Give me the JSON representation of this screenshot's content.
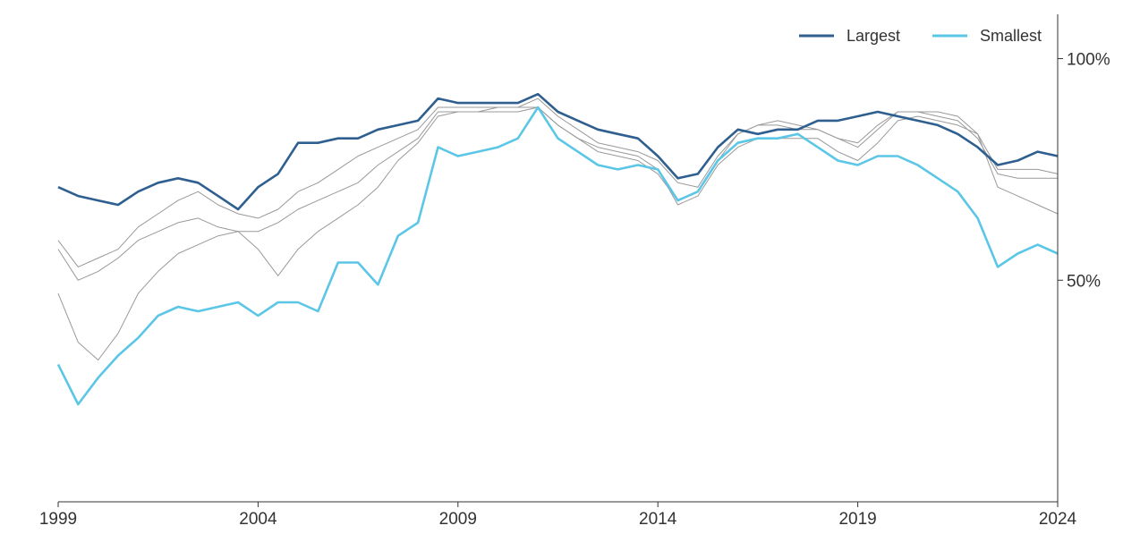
{
  "chart_data": {
    "type": "line",
    "title": "",
    "xlabel": "",
    "ylabel": "",
    "xlim": [
      1999,
      2024
    ],
    "ylim": [
      0,
      110
    ],
    "x_ticks": [
      1999,
      2004,
      2009,
      2014,
      2019,
      2024
    ],
    "x_tick_labels": [
      "1999",
      "2004",
      "2009",
      "2014",
      "2019",
      "2024"
    ],
    "y_ticks": [
      50,
      100
    ],
    "y_tick_labels": [
      "50%",
      "100%"
    ],
    "y_axis_position": "right",
    "grid": false,
    "legend_position": "top-right",
    "legend": [
      {
        "label": "Largest",
        "color": "#2e5f8f"
      },
      {
        "label": "Smallest",
        "color": "#5bc6e6"
      }
    ],
    "series": [
      {
        "name": "Largest",
        "color": "#2e5f8f",
        "highlight": true,
        "x": [
          1999.0,
          1999.5,
          2000.0,
          2000.5,
          2001.0,
          2001.5,
          2002.0,
          2002.5,
          2003.0,
          2003.5,
          2004.0,
          2004.5,
          2005.0,
          2005.5,
          2006.0,
          2006.5,
          2007.0,
          2007.5,
          2008.0,
          2008.5,
          2009.0,
          2009.5,
          2010.0,
          2010.5,
          2011.0,
          2011.5,
          2012.0,
          2012.5,
          2013.0,
          2013.5,
          2014.0,
          2014.5,
          2015.0,
          2015.5,
          2016.0,
          2016.5,
          2017.0,
          2017.5,
          2018.0,
          2018.5,
          2019.0,
          2019.5,
          2020.0,
          2020.5,
          2021.0,
          2021.5,
          2022.0,
          2022.5,
          2023.0,
          2023.5,
          2024.0
        ],
        "y": [
          71,
          69,
          68,
          67,
          70,
          72,
          73,
          72,
          69,
          66,
          71,
          74,
          81,
          81,
          82,
          82,
          84,
          85,
          86,
          91,
          90,
          90,
          90,
          90,
          92,
          88,
          86,
          84,
          83,
          82,
          78,
          73,
          74,
          80,
          84,
          83,
          84,
          84,
          86,
          86,
          87,
          88,
          87,
          86,
          85,
          83,
          80,
          76,
          77,
          79,
          78
        ]
      },
      {
        "name": "Smallest",
        "color": "#5bc6e6",
        "highlight": true,
        "x": [
          1999.0,
          1999.5,
          2000.0,
          2000.5,
          2001.0,
          2001.5,
          2002.0,
          2002.5,
          2003.0,
          2003.5,
          2004.0,
          2004.5,
          2005.0,
          2005.5,
          2006.0,
          2006.5,
          2007.0,
          2007.5,
          2008.0,
          2008.5,
          2009.0,
          2009.5,
          2010.0,
          2010.5,
          2011.0,
          2011.5,
          2012.0,
          2012.5,
          2013.0,
          2013.5,
          2014.0,
          2014.5,
          2015.0,
          2015.5,
          2016.0,
          2016.5,
          2017.0,
          2017.5,
          2018.0,
          2018.5,
          2019.0,
          2019.5,
          2020.0,
          2020.5,
          2021.0,
          2021.5,
          2022.0,
          2022.5,
          2023.0,
          2023.5,
          2024.0
        ],
        "y": [
          31,
          22,
          28,
          33,
          37,
          42,
          44,
          43,
          44,
          45,
          42,
          45,
          45,
          43,
          54,
          54,
          49,
          60,
          63,
          80,
          78,
          79,
          80,
          82,
          89,
          82,
          79,
          76,
          75,
          76,
          75,
          68,
          70,
          77,
          81,
          82,
          82,
          83,
          80,
          77,
          76,
          78,
          78,
          76,
          73,
          70,
          64,
          53,
          56,
          58,
          56
        ]
      },
      {
        "name": "",
        "color": "#999999",
        "highlight": false,
        "x": [
          1999.0,
          1999.5,
          2000.0,
          2000.5,
          2001.0,
          2001.5,
          2002.0,
          2002.5,
          2003.0,
          2003.5,
          2004.0,
          2004.5,
          2005.0,
          2005.5,
          2006.0,
          2006.5,
          2007.0,
          2007.5,
          2008.0,
          2008.5,
          2009.0,
          2009.5,
          2010.0,
          2010.5,
          2011.0,
          2011.5,
          2012.0,
          2012.5,
          2013.0,
          2013.5,
          2014.0,
          2014.5,
          2015.0,
          2015.5,
          2016.0,
          2016.5,
          2017.0,
          2017.5,
          2018.0,
          2018.5,
          2019.0,
          2019.5,
          2020.0,
          2020.5,
          2021.0,
          2021.5,
          2022.0,
          2022.5,
          2023.0,
          2023.5,
          2024.0
        ],
        "y": [
          59,
          53,
          55,
          57,
          62,
          65,
          68,
          70,
          67,
          65,
          64,
          66,
          70,
          72,
          75,
          78,
          80,
          82,
          84,
          89,
          89,
          89,
          89,
          89,
          91,
          87,
          84,
          81,
          80,
          79,
          77,
          72,
          71,
          78,
          83,
          85,
          86,
          85,
          84,
          82,
          81,
          85,
          88,
          88,
          88,
          87,
          83,
          75,
          75,
          75,
          74
        ]
      },
      {
        "name": "",
        "color": "#999999",
        "highlight": false,
        "x": [
          1999.0,
          1999.5,
          2000.0,
          2000.5,
          2001.0,
          2001.5,
          2002.0,
          2002.5,
          2003.0,
          2003.5,
          2004.0,
          2004.5,
          2005.0,
          2005.5,
          2006.0,
          2006.5,
          2007.0,
          2007.5,
          2008.0,
          2008.5,
          2009.0,
          2009.5,
          2010.0,
          2010.5,
          2011.0,
          2011.5,
          2012.0,
          2012.5,
          2013.0,
          2013.5,
          2014.0,
          2014.5,
          2015.0,
          2015.5,
          2016.0,
          2016.5,
          2017.0,
          2017.5,
          2018.0,
          2018.5,
          2019.0,
          2019.5,
          2020.0,
          2020.5,
          2021.0,
          2021.5,
          2022.0,
          2022.5,
          2023.0,
          2023.5,
          2024.0
        ],
        "y": [
          57,
          50,
          52,
          55,
          59,
          61,
          63,
          64,
          62,
          61,
          57,
          51,
          57,
          61,
          64,
          67,
          71,
          77,
          81,
          87,
          88,
          88,
          88,
          88,
          89,
          85,
          82,
          79,
          78,
          77,
          74,
          68,
          70,
          77,
          83,
          85,
          85,
          84,
          84,
          82,
          80,
          84,
          88,
          88,
          87,
          86,
          82,
          74,
          73,
          73,
          73
        ]
      },
      {
        "name": "",
        "color": "#999999",
        "highlight": false,
        "x": [
          1999.0,
          1999.5,
          2000.0,
          2000.5,
          2001.0,
          2001.5,
          2002.0,
          2002.5,
          2003.0,
          2003.5,
          2004.0,
          2004.5,
          2005.0,
          2005.5,
          2006.0,
          2006.5,
          2007.0,
          2007.5,
          2008.0,
          2008.5,
          2009.0,
          2009.5,
          2010.0,
          2010.5,
          2011.0,
          2011.5,
          2012.0,
          2012.5,
          2013.0,
          2013.5,
          2014.0,
          2014.5,
          2015.0,
          2015.5,
          2016.0,
          2016.5,
          2017.0,
          2017.5,
          2018.0,
          2018.5,
          2019.0,
          2019.5,
          2020.0,
          2020.5,
          2021.0,
          2021.5,
          2022.0,
          2022.5,
          2023.0,
          2023.5,
          2024.0
        ],
        "y": [
          47,
          36,
          32,
          38,
          47,
          52,
          56,
          58,
          60,
          61,
          61,
          63,
          66,
          68,
          70,
          72,
          76,
          79,
          82,
          88,
          88,
          88,
          89,
          89,
          89,
          85,
          82,
          80,
          79,
          78,
          75,
          67,
          69,
          76,
          80,
          82,
          82,
          82,
          82,
          79,
          77,
          81,
          86,
          87,
          86,
          85,
          83,
          71,
          69,
          67,
          65
        ]
      }
    ]
  }
}
